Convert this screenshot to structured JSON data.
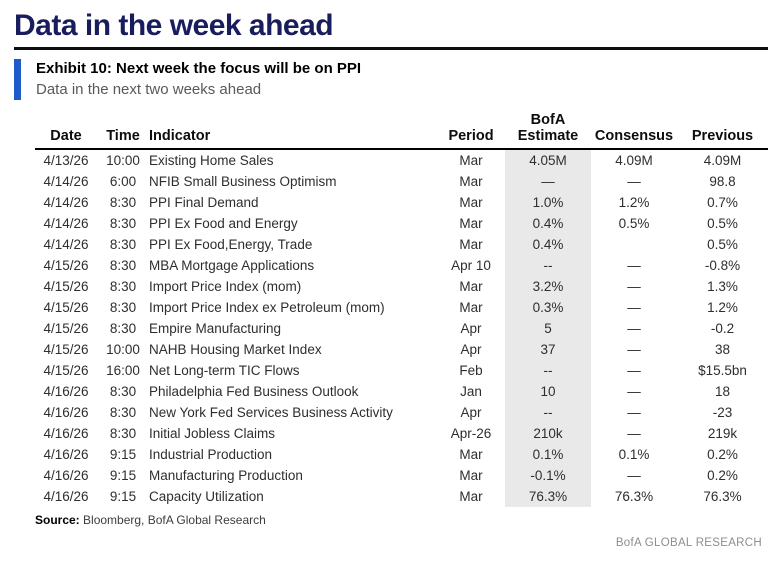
{
  "page": {
    "title": "Data in the week ahead"
  },
  "exhibit": {
    "title": "Exhibit 10: Next week the focus will be on PPI",
    "subtitle": "Data in the next two weeks ahead"
  },
  "colors": {
    "title_navy": "#191d5e",
    "exhibit_bar_blue": "#1b5bce",
    "estimate_column_shade": "#e9e9e9",
    "subtitle_gray": "#595959",
    "brand_gray": "#8e8e8e"
  },
  "table": {
    "estimate_header_top": "BofA",
    "columns": [
      "Date",
      "Time",
      "Indicator",
      "Period",
      "Estimate",
      "Consensus",
      "Previous"
    ],
    "rows": [
      [
        "4/13/26",
        "10:00",
        "Existing Home Sales",
        "Mar",
        "4.05M",
        "4.09M",
        "4.09M"
      ],
      [
        "4/14/26",
        "6:00",
        "NFIB Small Business Optimism",
        "Mar",
        "—",
        "—",
        "98.8"
      ],
      [
        "4/14/26",
        "8:30",
        "PPI Final Demand",
        "Mar",
        "1.0%",
        "1.2%",
        "0.7%"
      ],
      [
        "4/14/26",
        "8:30",
        "PPI Ex Food and Energy",
        "Mar",
        "0.4%",
        "0.5%",
        "0.5%"
      ],
      [
        "4/14/26",
        "8:30",
        "PPI Ex Food,Energy, Trade",
        "Mar",
        "0.4%",
        "",
        "0.5%"
      ],
      [
        "4/15/26",
        "8:30",
        "MBA Mortgage Applications",
        "Apr 10",
        "--",
        "—",
        "-0.8%"
      ],
      [
        "4/15/26",
        "8:30",
        "Import Price Index (mom)",
        "Mar",
        "3.2%",
        "—",
        "1.3%"
      ],
      [
        "4/15/26",
        "8:30",
        "Import Price Index ex Petroleum (mom)",
        "Mar",
        "0.3%",
        "—",
        "1.2%"
      ],
      [
        "4/15/26",
        "8:30",
        "Empire Manufacturing",
        "Apr",
        "5",
        "—",
        "-0.2"
      ],
      [
        "4/15/26",
        "10:00",
        "NAHB Housing Market Index",
        "Apr",
        "37",
        "—",
        "38"
      ],
      [
        "4/15/26",
        "16:00",
        "Net Long-term TIC Flows",
        "Feb",
        "--",
        "—",
        "$15.5bn"
      ],
      [
        "4/16/26",
        "8:30",
        "Philadelphia Fed Business Outlook",
        "Jan",
        "10",
        "—",
        "18"
      ],
      [
        "4/16/26",
        "8:30",
        "New York Fed Services Business Activity",
        "Apr",
        "--",
        "—",
        "-23"
      ],
      [
        "4/16/26",
        "8:30",
        "Initial Jobless Claims",
        "Apr-26",
        "210k",
        "—",
        "219k"
      ],
      [
        "4/16/26",
        "9:15",
        "Industrial Production",
        "Mar",
        "0.1%",
        "0.1%",
        "0.2%"
      ],
      [
        "4/16/26",
        "9:15",
        "Manufacturing Production",
        "Mar",
        "-0.1%",
        "—",
        "0.2%"
      ],
      [
        "4/16/26",
        "9:15",
        "Capacity Utilization",
        "Mar",
        "76.3%",
        "76.3%",
        "76.3%"
      ]
    ],
    "cell_names": [
      "date-cell",
      "time-cell",
      "indicator-cell",
      "period-cell",
      "bofa-estimate-cell",
      "consensus-cell",
      "previous-cell"
    ]
  },
  "footer": {
    "source_label": "Source:",
    "source_text": " Bloomberg, BofA Global Research",
    "brand": "BofA GLOBAL RESEARCH"
  }
}
